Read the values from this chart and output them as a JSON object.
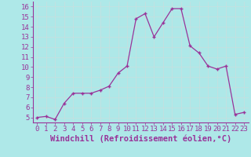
{
  "x": [
    0,
    1,
    2,
    3,
    4,
    5,
    6,
    7,
    8,
    9,
    10,
    11,
    12,
    13,
    14,
    15,
    16,
    17,
    18,
    19,
    20,
    21,
    22,
    23
  ],
  "y": [
    5.0,
    5.1,
    4.8,
    6.4,
    7.4,
    7.4,
    7.4,
    7.7,
    8.1,
    9.4,
    10.1,
    14.8,
    15.3,
    13.0,
    14.4,
    15.8,
    15.8,
    12.1,
    11.4,
    10.1,
    9.8,
    10.1,
    5.3,
    5.5
  ],
  "line_color": "#993399",
  "marker": "+",
  "marker_size": 3,
  "bg_color": "#aee8e8",
  "grid_color": "#c8dede",
  "xlabel": "Windchill (Refroidissement éolien,°C)",
  "xlabel_color": "#993399",
  "tick_color": "#993399",
  "ylim": [
    4.5,
    16.5
  ],
  "xlim": [
    -0.5,
    23.5
  ],
  "yticks": [
    5,
    6,
    7,
    8,
    9,
    10,
    11,
    12,
    13,
    14,
    15,
    16
  ],
  "xticks": [
    0,
    1,
    2,
    3,
    4,
    5,
    6,
    7,
    8,
    9,
    10,
    11,
    12,
    13,
    14,
    15,
    16,
    17,
    18,
    19,
    20,
    21,
    22,
    23
  ],
  "font_size": 6.5,
  "label_font_size": 7.5
}
